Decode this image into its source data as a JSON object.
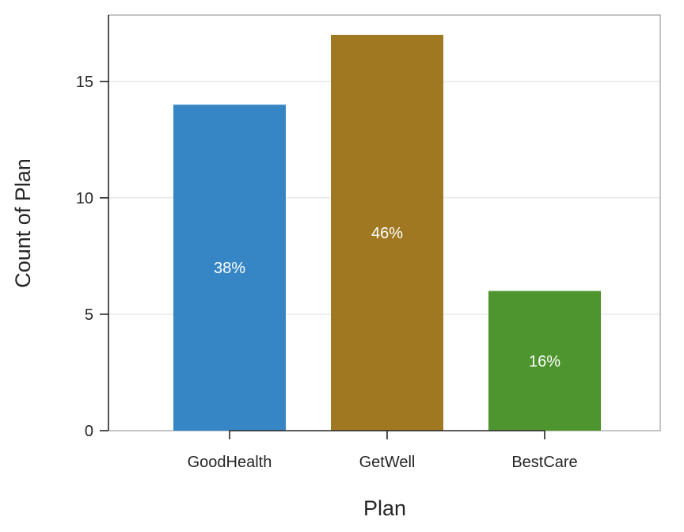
{
  "chart_data": {
    "type": "bar",
    "categories": [
      "GoodHealth",
      "GetWell",
      "BestCare"
    ],
    "values": [
      14,
      17,
      6
    ],
    "data_labels": [
      "38%",
      "46%",
      "16%"
    ],
    "colors": [
      "#3686c6",
      "#a07822",
      "#4e952f"
    ],
    "xlabel": "Plan",
    "ylabel": "Count of Plan",
    "ylim": [
      0,
      17.85
    ],
    "yticks": [
      0,
      5,
      10,
      15
    ],
    "ytick_labels": [
      "0",
      "5",
      "10",
      "15"
    ],
    "grid": true,
    "legend": "none"
  }
}
